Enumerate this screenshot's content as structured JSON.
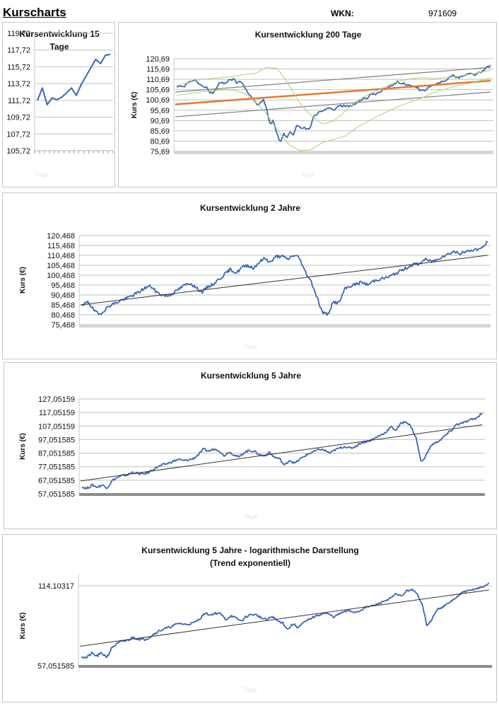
{
  "header": {
    "title": "Kurscharts",
    "wkn_label": "WKN:",
    "wkn_value": "971609"
  },
  "colors": {
    "price_line": "#3a66b8",
    "trend_line": "#333333",
    "channel_line": "#7f7f7f",
    "orange_trend": "#e8772e",
    "bollinger": "#a6d46a",
    "grid": "#c0c0c0"
  },
  "chart_data": [
    {
      "id": "chart15",
      "type": "line",
      "title": "Kursentwicklung 15 Tage",
      "title_lines": [
        "Kursentwicklung 15",
        "Tage"
      ],
      "xlabel": "Tage",
      "ylabel": "",
      "yticks": [
        "119,72",
        "117,72",
        "115,72",
        "113,72",
        "111,72",
        "109,72",
        "107,72",
        "105,72"
      ],
      "ylim": [
        105.72,
        119.72
      ],
      "x": [
        1,
        2,
        3,
        4,
        5,
        6,
        7,
        8,
        9,
        10,
        11,
        12,
        13,
        14,
        15,
        16
      ],
      "values": [
        111.7,
        113.2,
        111.2,
        112.0,
        111.8,
        112.1,
        112.6,
        113.2,
        112.3,
        113.6,
        114.6,
        115.6,
        116.6,
        116.1,
        117.1,
        117.2
      ],
      "grid": true
    },
    {
      "id": "chart200",
      "type": "line",
      "title": "Kursentwicklung 200 Tage",
      "xlabel": "Tage",
      "ylabel": "Kurs (€)",
      "yticks": [
        "120,69",
        "115,69",
        "110,69",
        "105,69",
        "100,69",
        "95,69",
        "90,69",
        "85,69",
        "80,69",
        "75,69"
      ],
      "ylim": [
        75.69,
        120.69
      ],
      "series": [
        {
          "name": "Kurs",
          "values": [
            106.5,
            107.2,
            106.8,
            108.5,
            110.0,
            109.5,
            109.8,
            108.2,
            107.0,
            106.5,
            104.5,
            103.8,
            106.5,
            109.0,
            108.8,
            109.5,
            110.8,
            110.5,
            109.2,
            109.8,
            108.0,
            104.5,
            103.0,
            101.0,
            98.0,
            99.5,
            100.5,
            96.0,
            88.5,
            91.5,
            84.0,
            80.2,
            84.5,
            82.0,
            85.0,
            83.0,
            88.5,
            87.0,
            87.5,
            86.0,
            87.5,
            93.0,
            94.0,
            95.0,
            96.0,
            96.5,
            97.5,
            96.0,
            97.0,
            97.5,
            98.0,
            97.5,
            98.0,
            98.5,
            99.0,
            100.0,
            101.5,
            101.0,
            103.5,
            104.0,
            103.5,
            105.0,
            106.0,
            106.5,
            107.0,
            108.5,
            109.5,
            108.8,
            108.5,
            107.5,
            107.8,
            107.0,
            106.5,
            105.5,
            105.0,
            106.0,
            107.5,
            107.5,
            108.5,
            109.5,
            110.0,
            111.0,
            112.0,
            112.5,
            111.5,
            112.0,
            112.5,
            113.0,
            113.5,
            113.0,
            113.5,
            114.0,
            115.0,
            116.5,
            117.5
          ]
        },
        {
          "name": "Trend",
          "start": 98.5,
          "end": 110.0,
          "color": "orange"
        },
        {
          "name": "Kanal oben",
          "start": 104.5,
          "end": 116.5
        },
        {
          "name": "Kanal unten",
          "start": 92.5,
          "end": 104.5
        },
        {
          "name": "Bollinger oben",
          "values": [
            107.5,
            109.0,
            110.5,
            111.0,
            111.5,
            112.0,
            113.0,
            113.5,
            116.5,
            116.0,
            108.0,
            99.0,
            93.0,
            89.0,
            90.5,
            95.0,
            100.0,
            103.0,
            105.5,
            108.0,
            110.0,
            111.0,
            111.5,
            111.0,
            111.5,
            112.0,
            113.0,
            114.0,
            115.0
          ]
        },
        {
          "name": "Bollinger unten",
          "values": [
            103.0,
            103.5,
            104.5,
            105.0,
            105.5,
            105.5,
            104.0,
            100.0,
            94.0,
            86.0,
            79.0,
            76.0,
            76.5,
            80.0,
            81.5,
            83.0,
            87.0,
            90.0,
            93.0,
            95.5,
            98.0,
            100.0,
            102.0,
            104.5,
            106.0,
            107.5,
            108.5,
            110.0,
            111.5
          ]
        }
      ],
      "grid": true
    },
    {
      "id": "chart2y",
      "type": "line",
      "title": "Kursentwicklung 2 Jahre",
      "xlabel": "Tage",
      "ylabel": "Kurs (€)",
      "yticks": [
        "120,468",
        "115,468",
        "110,468",
        "105,468",
        "100,468",
        "95,468",
        "90,468",
        "85,468",
        "80,468",
        "75,468"
      ],
      "ylim": [
        75.468,
        120.468
      ],
      "series": [
        {
          "name": "Kurs",
          "values": [
            84.5,
            87.5,
            83.0,
            80.5,
            83.0,
            85.5,
            86.5,
            88.0,
            89.0,
            90.5,
            92.0,
            94.0,
            95.0,
            92.0,
            90.5,
            90.0,
            91.5,
            93.5,
            95.5,
            96.5,
            94.0,
            92.0,
            94.5,
            96.0,
            98.5,
            101.0,
            103.5,
            101.5,
            104.5,
            105.5,
            104.0,
            107.0,
            109.0,
            107.0,
            110.0,
            110.0,
            108.5,
            110.5,
            109.5,
            102.5,
            98.0,
            90.5,
            82.0,
            80.5,
            87.0,
            86.5,
            93.5,
            95.0,
            96.0,
            97.0,
            95.5,
            97.5,
            98.5,
            99.0,
            100.0,
            101.5,
            103.0,
            104.5,
            106.0,
            106.0,
            108.5,
            107.5,
            108.0,
            110.0,
            111.0,
            112.5,
            111.5,
            112.0,
            113.0,
            113.5,
            114.0,
            117.5
          ]
        },
        {
          "name": "Trend",
          "start": 85.5,
          "end": 110.5
        }
      ],
      "grid": true
    },
    {
      "id": "chart5y",
      "type": "line",
      "title": "Kursentwicklung 5 Jahre",
      "xlabel": "Tage",
      "ylabel": "Kurs (€)",
      "yticks": [
        "127,05159",
        "117,05159",
        "107,05159",
        "97,051585",
        "87,051585",
        "77,051585",
        "67,051585",
        "57,051585"
      ],
      "ylim": [
        57.051585,
        127.051585
      ],
      "series": [
        {
          "name": "Kurs",
          "values": [
            62.0,
            61.0,
            63.5,
            62.0,
            63.5,
            61.5,
            67.0,
            69.0,
            70.5,
            71.0,
            73.0,
            72.0,
            71.5,
            72.5,
            75.0,
            77.0,
            78.5,
            79.5,
            81.0,
            82.5,
            81.5,
            82.0,
            83.0,
            86.0,
            90.0,
            88.5,
            90.0,
            89.5,
            85.0,
            88.0,
            86.0,
            84.0,
            87.5,
            89.0,
            88.5,
            86.0,
            85.0,
            87.5,
            84.0,
            83.0,
            78.0,
            82.0,
            79.5,
            82.5,
            85.0,
            87.0,
            88.5,
            90.0,
            89.0,
            87.0,
            89.5,
            91.0,
            92.0,
            90.5,
            92.0,
            94.5,
            95.5,
            96.5,
            98.5,
            100.5,
            102.5,
            106.5,
            104.0,
            109.0,
            110.5,
            106.5,
            98.0,
            80.0,
            86.0,
            93.0,
            95.0,
            97.5,
            101.0,
            104.0,
            108.5,
            109.0,
            110.5,
            112.0,
            113.0,
            117.0
          ]
        },
        {
          "name": "Trend",
          "start": 66.5,
          "end": 108.0
        }
      ],
      "grid": true
    },
    {
      "id": "chart5ylog",
      "type": "line",
      "title": "Kursentwicklung 5 Jahre - logarithmische Darstellung (Trend exponentiell)",
      "title_lines": [
        "Kursentwicklung 5 Jahre - logarithmische Darstellung",
        "(Trend exponentiell)"
      ],
      "xlabel": "Tage",
      "ylabel": "Kurs (€)",
      "yticks": [
        "114,10317",
        "57,051585"
      ],
      "ylim": [
        57.051585,
        114.10317
      ],
      "yscale": "log",
      "series": [
        {
          "name": "Kurs",
          "values": [
            62.0,
            61.0,
            63.5,
            62.0,
            63.5,
            61.5,
            67.0,
            69.0,
            70.5,
            71.0,
            73.0,
            72.0,
            71.5,
            72.5,
            75.0,
            77.0,
            78.5,
            79.5,
            81.0,
            82.5,
            81.5,
            82.0,
            83.0,
            86.0,
            90.0,
            88.5,
            90.0,
            89.5,
            85.0,
            88.0,
            86.0,
            84.0,
            87.5,
            89.0,
            88.5,
            86.0,
            85.0,
            87.5,
            84.0,
            83.0,
            78.0,
            82.0,
            79.5,
            82.5,
            85.0,
            87.0,
            88.5,
            90.0,
            89.0,
            87.0,
            89.5,
            91.0,
            92.0,
            90.5,
            92.0,
            94.5,
            95.5,
            96.5,
            98.5,
            100.5,
            102.5,
            106.5,
            104.0,
            109.0,
            110.5,
            106.5,
            98.0,
            80.0,
            86.0,
            93.0,
            95.0,
            97.5,
            101.0,
            104.0,
            108.5,
            109.0,
            110.5,
            112.0,
            113.0,
            117.0
          ]
        },
        {
          "name": "Trend",
          "start": 67.5,
          "end": 110.0
        }
      ],
      "grid": true
    }
  ]
}
